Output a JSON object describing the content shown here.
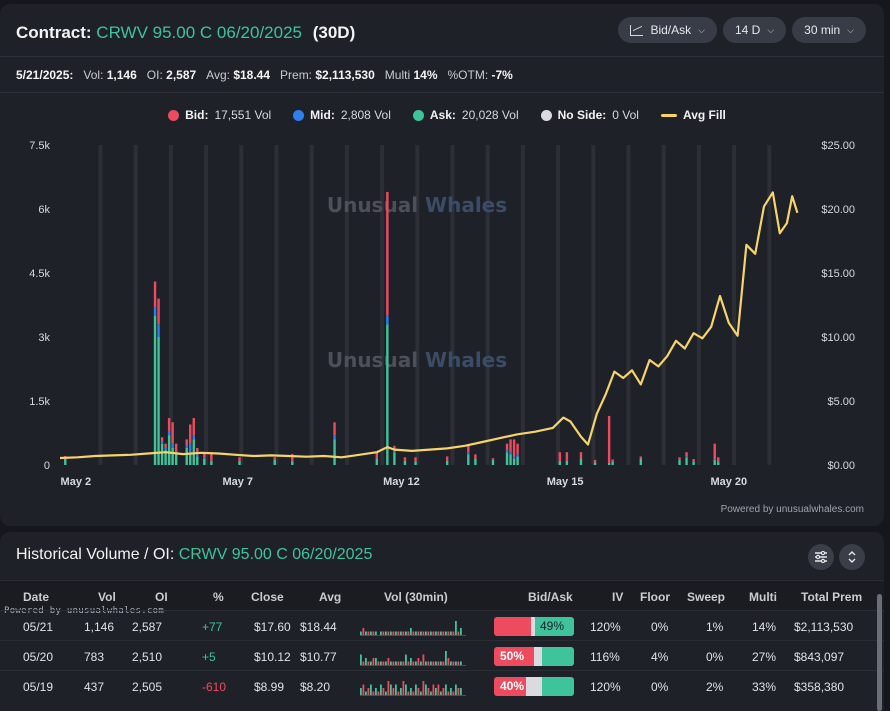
{
  "header": {
    "contract_label": "Contract:",
    "contract": "CRWV 95.00 C 06/20/2025",
    "span": "(30D)",
    "controls": [
      {
        "label": "Bid/Ask",
        "icon": "line-chart-icon"
      },
      {
        "label": "14 D"
      },
      {
        "label": "30 min"
      }
    ]
  },
  "stats": {
    "date": "5/21/2025:",
    "vol_label": "Vol:",
    "vol": "1,146",
    "oi_label": "OI:",
    "oi": "2,587",
    "avg_label": "Avg:",
    "avg": "$18.44",
    "prem_label": "Prem:",
    "prem": "$2,113,530",
    "multi_label": "Multi",
    "multi": "14%",
    "otm_label": "%OTM:",
    "otm": "-7%"
  },
  "legend": [
    {
      "key": "Bid:",
      "value": "17,551 Vol",
      "color": "#ef4b5f",
      "shape": "dot"
    },
    {
      "key": "Mid:",
      "value": "2,808 Vol",
      "color": "#2f80ed",
      "shape": "dot"
    },
    {
      "key": "Ask:",
      "value": "20,028 Vol",
      "color": "#3fc39b",
      "shape": "dot"
    },
    {
      "key": "No Side:",
      "value": "0 Vol",
      "color": "#d9dbe0",
      "shape": "dot"
    },
    {
      "key": "Avg Fill",
      "value": "",
      "color": "#f7d46b",
      "shape": "line"
    }
  ],
  "watermark": "Unusual Whales",
  "powered_by": "Powered by unusualwhales.com",
  "chart_data": {
    "type": "bar",
    "left_axis_ticks": [
      "7.5k",
      "6k",
      "4.5k",
      "3k",
      "1.5k",
      "0"
    ],
    "right_axis_ticks": [
      "$25.00",
      "$20.00",
      "$15.00",
      "$10.00",
      "$5.00",
      "$0.00"
    ],
    "x_ticks": [
      "May 2",
      "May 7",
      "May 12",
      "May 15",
      "May 20"
    ],
    "ylim_volume": [
      0,
      7500
    ],
    "ylim_price": [
      0,
      25
    ],
    "volume_bars": [
      {
        "x": 0.3,
        "ask": 150,
        "mid": 0,
        "bid": 60
      },
      {
        "x": 5.4,
        "ask": 3500,
        "mid": 200,
        "bid": 600
      },
      {
        "x": 5.6,
        "ask": 3000,
        "mid": 300,
        "bid": 600
      },
      {
        "x": 5.8,
        "ask": 500,
        "mid": 50,
        "bid": 100
      },
      {
        "x": 6.0,
        "ask": 350,
        "mid": 50,
        "bid": 100
      },
      {
        "x": 6.2,
        "ask": 700,
        "mid": 100,
        "bid": 300
      },
      {
        "x": 6.4,
        "ask": 400,
        "mid": 100,
        "bid": 500
      },
      {
        "x": 6.6,
        "ask": 250,
        "mid": 50,
        "bid": 200
      },
      {
        "x": 7.2,
        "ask": 400,
        "mid": 50,
        "bid": 150
      },
      {
        "x": 7.4,
        "ask": 300,
        "mid": 200,
        "bid": 450
      },
      {
        "x": 7.6,
        "ask": 600,
        "mid": 100,
        "bid": 400
      },
      {
        "x": 7.8,
        "ask": 200,
        "mid": 50,
        "bid": 150
      },
      {
        "x": 8.2,
        "ask": 150,
        "mid": 20,
        "bid": 100
      },
      {
        "x": 8.6,
        "ask": 100,
        "mid": 0,
        "bid": 200
      },
      {
        "x": 10.2,
        "ask": 100,
        "mid": 0,
        "bid": 80
      },
      {
        "x": 12.2,
        "ask": 120,
        "mid": 0,
        "bid": 60
      },
      {
        "x": 13.2,
        "ask": 80,
        "mid": 0,
        "bid": 180
      },
      {
        "x": 15.6,
        "ask": 600,
        "mid": 100,
        "bid": 300
      },
      {
        "x": 18.0,
        "ask": 150,
        "mid": 0,
        "bid": 150
      },
      {
        "x": 18.6,
        "ask": 3300,
        "mid": 200,
        "bid": 2900
      },
      {
        "x": 19.0,
        "ask": 300,
        "mid": 50,
        "bid": 100
      },
      {
        "x": 19.6,
        "ask": 100,
        "mid": 0,
        "bid": 80
      },
      {
        "x": 20.2,
        "ask": 80,
        "mid": 0,
        "bid": 100
      },
      {
        "x": 22.0,
        "ask": 100,
        "mid": 0,
        "bid": 100
      },
      {
        "x": 23.2,
        "ask": 250,
        "mid": 50,
        "bid": 150
      },
      {
        "x": 23.6,
        "ask": 150,
        "mid": 0,
        "bid": 100
      },
      {
        "x": 24.6,
        "ask": 120,
        "mid": 0,
        "bid": 40
      },
      {
        "x": 25.4,
        "ask": 300,
        "mid": 50,
        "bid": 150
      },
      {
        "x": 25.6,
        "ask": 250,
        "mid": 50,
        "bid": 300
      },
      {
        "x": 25.8,
        "ask": 150,
        "mid": 50,
        "bid": 400
      },
      {
        "x": 26.0,
        "ask": 200,
        "mid": 50,
        "bid": 250
      },
      {
        "x": 28.4,
        "ask": 100,
        "mid": 0,
        "bid": 200
      },
      {
        "x": 28.8,
        "ask": 100,
        "mid": 0,
        "bid": 200
      },
      {
        "x": 29.6,
        "ask": 150,
        "mid": 0,
        "bid": 150
      },
      {
        "x": 30.4,
        "ask": 60,
        "mid": 0,
        "bid": 60
      },
      {
        "x": 31.2,
        "ask": 50,
        "mid": 0,
        "bid": 1100
      },
      {
        "x": 31.4,
        "ask": 80,
        "mid": 0,
        "bid": 50
      },
      {
        "x": 33.0,
        "ask": 150,
        "mid": 0,
        "bid": 50
      },
      {
        "x": 35.2,
        "ask": 120,
        "mid": 0,
        "bid": 60
      },
      {
        "x": 35.6,
        "ask": 180,
        "mid": 20,
        "bid": 100
      },
      {
        "x": 36.0,
        "ask": 80,
        "mid": 0,
        "bid": 60
      },
      {
        "x": 37.2,
        "ask": 120,
        "mid": 0,
        "bid": 380
      },
      {
        "x": 37.4,
        "ask": 80,
        "mid": 0,
        "bid": 100
      }
    ],
    "avg_fill": [
      [
        0,
        0.55
      ],
      [
        1,
        0.6
      ],
      [
        2,
        0.7
      ],
      [
        3,
        0.75
      ],
      [
        4,
        0.8
      ],
      [
        5,
        0.9
      ],
      [
        6,
        1.0
      ],
      [
        7,
        0.85
      ],
      [
        8,
        0.95
      ],
      [
        9,
        0.9
      ],
      [
        10,
        0.8
      ],
      [
        11,
        0.7
      ],
      [
        12,
        0.75
      ],
      [
        13,
        0.7
      ],
      [
        14,
        0.65
      ],
      [
        15,
        0.7
      ],
      [
        16,
        0.6
      ],
      [
        17,
        0.8
      ],
      [
        18,
        1.0
      ],
      [
        18.6,
        1.4
      ],
      [
        19,
        1.2
      ],
      [
        20,
        1.1
      ],
      [
        21,
        1.2
      ],
      [
        22,
        1.3
      ],
      [
        23,
        1.5
      ],
      [
        24,
        1.8
      ],
      [
        25,
        2.1
      ],
      [
        26,
        2.4
      ],
      [
        27,
        2.6
      ],
      [
        28,
        2.9
      ],
      [
        28.6,
        3.7
      ],
      [
        29,
        3.4
      ],
      [
        29.6,
        2.2
      ],
      [
        30,
        1.6
      ],
      [
        30.5,
        4.0
      ],
      [
        31,
        5.5
      ],
      [
        31.5,
        7.3
      ],
      [
        32,
        6.8
      ],
      [
        32.5,
        7.4
      ],
      [
        33,
        6.3
      ],
      [
        33.5,
        8.2
      ],
      [
        34,
        7.7
      ],
      [
        34.5,
        8.5
      ],
      [
        35,
        9.7
      ],
      [
        35.5,
        9.1
      ],
      [
        36,
        10.3
      ],
      [
        36.5,
        9.9
      ],
      [
        37,
        10.8
      ],
      [
        37.5,
        13.2
      ],
      [
        38,
        11.1
      ],
      [
        38.5,
        10.1
      ],
      [
        39,
        17.2
      ],
      [
        39.5,
        16.5
      ],
      [
        40,
        20.2
      ],
      [
        40.5,
        21.3
      ],
      [
        40.9,
        18.1
      ],
      [
        41.3,
        18.9
      ],
      [
        41.6,
        21.0
      ],
      [
        41.9,
        19.7
      ]
    ]
  },
  "history": {
    "title": "Historical Volume / OI:",
    "contract": "CRWV 95.00 C 06/20/2025",
    "powered_tag": "Powered by unusualwhales.com",
    "columns": [
      "Date",
      "Vol",
      "OI",
      "%",
      "Close",
      "Avg",
      "Vol (30min)",
      "Bid/Ask",
      "IV",
      "Floor",
      "Sweep",
      "Multi",
      "Total Prem"
    ],
    "rows": [
      {
        "date": "05/21",
        "vol": "1,146",
        "oi": "2,587",
        "chg": "+77",
        "close": "$17.60",
        "avg": "$18.44",
        "bid_pct": 0.46,
        "mid_pct": 0.05,
        "ask_pct": 0.49,
        "ba_label": "49%",
        "ba_side": "ask",
        "iv": "120%",
        "floor": "0%",
        "sweep": "1%",
        "multi": "14%",
        "prem": "$2,113,530"
      },
      {
        "date": "05/20",
        "vol": "783",
        "oi": "2,510",
        "chg": "+5",
        "close": "$10.12",
        "avg": "$10.77",
        "bid_pct": 0.5,
        "mid_pct": 0.1,
        "ask_pct": 0.4,
        "ba_label": "50%",
        "ba_side": "bid",
        "iv": "116%",
        "floor": "4%",
        "sweep": "0%",
        "multi": "27%",
        "prem": "$843,097"
      },
      {
        "date": "05/19",
        "vol": "437",
        "oi": "2,505",
        "chg": "-610",
        "close": "$8.99",
        "avg": "$8.20",
        "bid_pct": 0.4,
        "mid_pct": 0.2,
        "ask_pct": 0.4,
        "ba_label": "40%",
        "ba_side": "bid",
        "iv": "120%",
        "floor": "0%",
        "sweep": "2%",
        "multi": "33%",
        "prem": "$358,380"
      }
    ]
  }
}
